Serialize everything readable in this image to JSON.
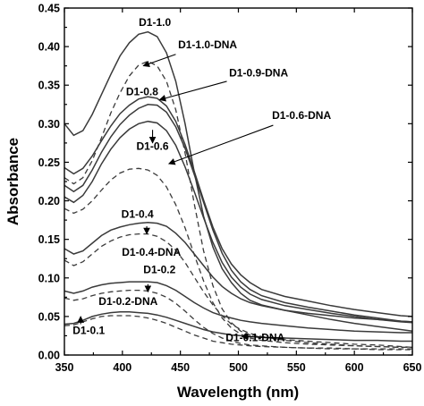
{
  "chart_data": {
    "type": "line",
    "xlabel": "Wavelength (nm)",
    "ylabel": "Absorbance",
    "xlim": [
      350,
      650
    ],
    "ylim": [
      0.0,
      0.45
    ],
    "xticks": [
      350,
      400,
      450,
      500,
      550,
      600,
      650
    ],
    "yticks": [
      0.0,
      0.05,
      0.1,
      0.15,
      0.2,
      0.25,
      0.3,
      0.35,
      0.4,
      0.45
    ],
    "xtick_labels": [
      "350",
      "400",
      "450",
      "500",
      "550",
      "600",
      "650"
    ],
    "ytick_labels": [
      "0.00",
      "0.05",
      "0.10",
      "0.15",
      "0.20",
      "0.25",
      "0.30",
      "0.35",
      "0.40",
      "0.45"
    ],
    "grid": false,
    "legend": "none",
    "series": [
      {
        "name": "D1-1.0",
        "style": "solid",
        "x": [
          350,
          358,
          366,
          374,
          382,
          390,
          398,
          406,
          414,
          422,
          430,
          438,
          446,
          454,
          462,
          470,
          478,
          486,
          494,
          502,
          510,
          520,
          540,
          560,
          580,
          600,
          620,
          640,
          650
        ],
        "y": [
          0.3,
          0.285,
          0.291,
          0.312,
          0.338,
          0.364,
          0.388,
          0.405,
          0.416,
          0.419,
          0.413,
          0.392,
          0.355,
          0.3,
          0.237,
          0.18,
          0.14,
          0.112,
          0.094,
          0.08,
          0.071,
          0.065,
          0.058,
          0.052,
          0.046,
          0.041,
          0.037,
          0.033,
          0.031
        ]
      },
      {
        "name": "D1-1.0-DNA",
        "style": "dashed",
        "x": [
          350,
          358,
          366,
          374,
          382,
          390,
          398,
          406,
          414,
          422,
          430,
          438,
          446,
          454,
          462,
          470,
          478,
          486,
          494,
          502,
          510,
          520,
          540,
          560,
          580,
          600,
          620,
          640,
          650
        ],
        "y": [
          0.23,
          0.222,
          0.23,
          0.252,
          0.282,
          0.314,
          0.34,
          0.362,
          0.376,
          0.381,
          0.375,
          0.355,
          0.318,
          0.262,
          0.196,
          0.135,
          0.09,
          0.06,
          0.042,
          0.031,
          0.026,
          0.023,
          0.02,
          0.018,
          0.016,
          0.014,
          0.013,
          0.011,
          0.01
        ]
      },
      {
        "name": "D1-0.9-DNA",
        "style": "solid",
        "x": [
          350,
          358,
          366,
          374,
          382,
          390,
          398,
          406,
          414,
          422,
          430,
          438,
          446,
          454,
          462,
          470,
          478,
          486,
          494,
          502,
          510,
          520,
          540,
          560,
          580,
          600,
          620,
          640,
          650
        ],
        "y": [
          0.243,
          0.235,
          0.242,
          0.258,
          0.278,
          0.297,
          0.313,
          0.324,
          0.332,
          0.335,
          0.333,
          0.323,
          0.303,
          0.273,
          0.238,
          0.201,
          0.166,
          0.138,
          0.118,
          0.104,
          0.094,
          0.085,
          0.076,
          0.07,
          0.064,
          0.059,
          0.055,
          0.051,
          0.05
        ]
      },
      {
        "name": "D1-0.8",
        "style": "solid",
        "x": [
          350,
          358,
          366,
          374,
          382,
          390,
          398,
          406,
          414,
          422,
          430,
          438,
          446,
          454,
          462,
          470,
          478,
          486,
          494,
          502,
          510,
          520,
          540,
          560,
          580,
          600,
          620,
          640,
          650
        ],
        "y": [
          0.22,
          0.212,
          0.22,
          0.24,
          0.263,
          0.283,
          0.299,
          0.311,
          0.32,
          0.325,
          0.324,
          0.315,
          0.296,
          0.268,
          0.234,
          0.198,
          0.162,
          0.132,
          0.11,
          0.095,
          0.085,
          0.077,
          0.068,
          0.062,
          0.057,
          0.052,
          0.048,
          0.044,
          0.043
        ]
      },
      {
        "name": "D1-0.6",
        "style": "solid",
        "x": [
          350,
          358,
          366,
          374,
          382,
          390,
          398,
          406,
          414,
          422,
          430,
          438,
          446,
          454,
          462,
          470,
          478,
          486,
          494,
          502,
          510,
          520,
          540,
          560,
          580,
          600,
          620,
          640,
          650
        ],
        "y": [
          0.205,
          0.198,
          0.207,
          0.225,
          0.248,
          0.267,
          0.282,
          0.293,
          0.3,
          0.303,
          0.301,
          0.291,
          0.272,
          0.244,
          0.212,
          0.178,
          0.146,
          0.12,
          0.101,
          0.088,
          0.079,
          0.072,
          0.064,
          0.059,
          0.054,
          0.05,
          0.046,
          0.043,
          0.042
        ]
      },
      {
        "name": "D1-0.6-DNA",
        "style": "dashed",
        "x": [
          350,
          358,
          366,
          374,
          382,
          390,
          398,
          406,
          414,
          422,
          430,
          438,
          446,
          454,
          462,
          470,
          478,
          486,
          494,
          502,
          510,
          520,
          540,
          560,
          580,
          600,
          620,
          640,
          650
        ],
        "y": [
          0.19,
          0.184,
          0.189,
          0.2,
          0.214,
          0.227,
          0.236,
          0.241,
          0.242,
          0.24,
          0.233,
          0.218,
          0.195,
          0.165,
          0.13,
          0.096,
          0.068,
          0.048,
          0.035,
          0.027,
          0.022,
          0.019,
          0.016,
          0.014,
          0.013,
          0.012,
          0.011,
          0.01,
          0.01
        ]
      },
      {
        "name": "D1-0.4",
        "style": "solid",
        "x": [
          350,
          358,
          366,
          374,
          382,
          390,
          398,
          406,
          414,
          422,
          430,
          438,
          446,
          454,
          462,
          470,
          478,
          486,
          494,
          502,
          510,
          520,
          540,
          560,
          580,
          600,
          620,
          640,
          650
        ],
        "y": [
          0.138,
          0.131,
          0.135,
          0.145,
          0.155,
          0.162,
          0.166,
          0.169,
          0.171,
          0.172,
          0.171,
          0.167,
          0.158,
          0.146,
          0.131,
          0.116,
          0.101,
          0.089,
          0.08,
          0.073,
          0.068,
          0.064,
          0.058,
          0.054,
          0.051,
          0.048,
          0.046,
          0.044,
          0.043
        ]
      },
      {
        "name": "D1-0.4-DNA",
        "style": "dashed",
        "x": [
          350,
          358,
          366,
          374,
          382,
          390,
          398,
          406,
          414,
          422,
          430,
          438,
          446,
          454,
          462,
          470,
          478,
          486,
          494,
          502,
          510,
          520,
          540,
          560,
          580,
          600,
          620,
          640,
          650
        ],
        "y": [
          0.123,
          0.116,
          0.121,
          0.131,
          0.141,
          0.148,
          0.153,
          0.156,
          0.157,
          0.157,
          0.154,
          0.147,
          0.136,
          0.12,
          0.101,
          0.082,
          0.065,
          0.051,
          0.04,
          0.033,
          0.028,
          0.024,
          0.019,
          0.016,
          0.014,
          0.012,
          0.011,
          0.01,
          0.01
        ]
      },
      {
        "name": "D1-0.2",
        "style": "solid",
        "x": [
          350,
          358,
          366,
          374,
          382,
          390,
          398,
          406,
          414,
          422,
          430,
          438,
          446,
          454,
          462,
          470,
          478,
          486,
          494,
          502,
          510,
          520,
          540,
          560,
          580,
          600,
          620,
          640,
          650
        ],
        "y": [
          0.083,
          0.08,
          0.083,
          0.088,
          0.091,
          0.093,
          0.094,
          0.095,
          0.095,
          0.095,
          0.094,
          0.09,
          0.084,
          0.076,
          0.068,
          0.061,
          0.055,
          0.051,
          0.048,
          0.045,
          0.043,
          0.041,
          0.038,
          0.035,
          0.033,
          0.031,
          0.03,
          0.029,
          0.029
        ]
      },
      {
        "name": "D1-0.2-DNA",
        "style": "dashed",
        "x": [
          350,
          358,
          366,
          374,
          382,
          390,
          398,
          406,
          414,
          422,
          430,
          438,
          446,
          454,
          462,
          470,
          478,
          486,
          494,
          502,
          510,
          520,
          540,
          560,
          580,
          600,
          620,
          640,
          650
        ],
        "y": [
          0.074,
          0.071,
          0.073,
          0.077,
          0.08,
          0.082,
          0.083,
          0.084,
          0.084,
          0.083,
          0.08,
          0.075,
          0.067,
          0.057,
          0.046,
          0.036,
          0.028,
          0.022,
          0.018,
          0.015,
          0.013,
          0.012,
          0.01,
          0.009,
          0.008,
          0.008,
          0.007,
          0.007,
          0.007
        ]
      },
      {
        "name": "D1-0.1",
        "style": "solid",
        "x": [
          350,
          358,
          366,
          374,
          382,
          390,
          398,
          406,
          414,
          422,
          430,
          438,
          446,
          454,
          462,
          470,
          478,
          486,
          494,
          502,
          510,
          520,
          540,
          560,
          580,
          600,
          620,
          640,
          650
        ],
        "y": [
          0.04,
          0.041,
          0.045,
          0.05,
          0.053,
          0.055,
          0.056,
          0.056,
          0.055,
          0.054,
          0.052,
          0.049,
          0.045,
          0.041,
          0.037,
          0.033,
          0.03,
          0.028,
          0.026,
          0.025,
          0.024,
          0.023,
          0.022,
          0.021,
          0.02,
          0.019,
          0.019,
          0.018,
          0.018
        ]
      },
      {
        "name": "D1-0.1-DNA",
        "style": "dashed",
        "x": [
          350,
          358,
          366,
          374,
          382,
          390,
          398,
          406,
          414,
          422,
          430,
          438,
          446,
          454,
          462,
          470,
          478,
          486,
          494,
          502,
          510,
          520,
          540,
          560,
          580,
          600,
          620,
          640,
          650
        ],
        "y": [
          0.038,
          0.039,
          0.043,
          0.047,
          0.05,
          0.051,
          0.051,
          0.051,
          0.05,
          0.048,
          0.045,
          0.041,
          0.036,
          0.031,
          0.026,
          0.022,
          0.018,
          0.016,
          0.014,
          0.013,
          0.012,
          0.011,
          0.01,
          0.009,
          0.009,
          0.008,
          0.008,
          0.008,
          0.008
        ]
      }
    ],
    "annotations": [
      {
        "text": "D1-1.0",
        "x": 428,
        "y": 0.427,
        "anchor": "middle"
      },
      {
        "text": "D1-1.0-DNA",
        "x": 448,
        "y": 0.398,
        "anchor": "start",
        "arrow_from": [
          446,
          0.39
        ],
        "arrow_to": [
          418,
          0.375
        ]
      },
      {
        "text": "D1-0.9-DNA",
        "x": 492,
        "y": 0.361,
        "anchor": "start",
        "arrow_from": [
          490,
          0.355
        ],
        "arrow_to": [
          432,
          0.331
        ]
      },
      {
        "text": "D1-0.8",
        "x": 417,
        "y": 0.337,
        "anchor": "middle"
      },
      {
        "text": "D1-0.6-DNA",
        "x": 529,
        "y": 0.306,
        "anchor": "start",
        "arrow_from": [
          530,
          0.298
        ],
        "arrow_to": [
          440,
          0.248
        ]
      },
      {
        "text": "D1-0.6",
        "x": 426,
        "y": 0.266,
        "anchor": "middle",
        "arrow_from": [
          426,
          0.292
        ],
        "arrow_to": [
          426,
          0.275
        ]
      },
      {
        "text": "D1-0.4",
        "x": 413,
        "y": 0.178,
        "anchor": "middle"
      },
      {
        "text": "D1-0.4-DNA",
        "x": 425,
        "y": 0.129,
        "anchor": "middle",
        "arrow_from": [
          421,
          0.167
        ],
        "arrow_to": [
          421,
          0.157
        ]
      },
      {
        "text": "D1-0.2",
        "x": 432,
        "y": 0.106,
        "anchor": "middle",
        "arrow_from": [
          422,
          0.092
        ],
        "arrow_to": [
          422,
          0.082
        ]
      },
      {
        "text": "D1-0.2-DNA",
        "x": 405,
        "y": 0.065,
        "anchor": "middle"
      },
      {
        "text": "D1-0.1",
        "x": 371,
        "y": 0.027,
        "anchor": "middle",
        "arrow_from": [
          364,
          0.04
        ],
        "arrow_to": [
          364,
          0.05
        ]
      },
      {
        "text": "D1-0.1-DNA",
        "x": 489,
        "y": 0.018,
        "anchor": "start",
        "arrow_from": [
          540,
          0.022
        ],
        "arrow_to": [
          503,
          0.024
        ]
      }
    ]
  }
}
